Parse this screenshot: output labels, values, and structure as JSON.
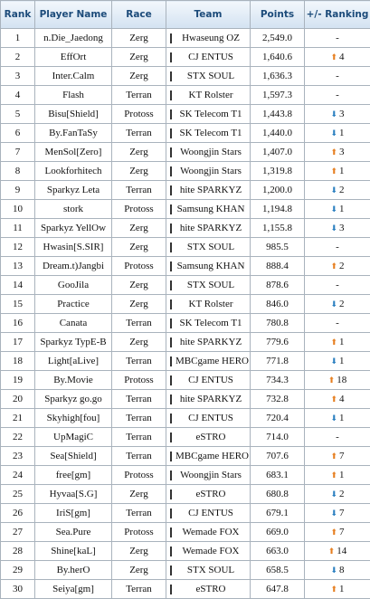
{
  "table": {
    "header": [
      "Rank",
      "Player Name",
      "Race",
      "Team",
      "Points",
      "+/- Ranking"
    ],
    "rows": [
      [
        "1",
        "n.Die_Jaedong",
        "Zerg",
        "Hwaseung OZ",
        "2,549.0",
        "-"
      ],
      [
        "2",
        "EffOrt",
        "Zerg",
        "CJ ENTUS",
        "1,640.6",
        {
          "trend": "up",
          "text": "4"
        }
      ],
      [
        "3",
        "Inter.Calm",
        "Zerg",
        "STX SOUL",
        "1,636.3",
        "-"
      ],
      [
        "4",
        "Flash",
        "Terran",
        "KT Rolster",
        "1,597.3",
        "-"
      ],
      [
        "5",
        "Bisu[Shield]",
        "Protoss",
        "SK Telecom T1",
        "1,443.8",
        {
          "trend": "down",
          "text": "3"
        }
      ],
      [
        "6",
        "By.FanTaSy",
        "Terran",
        "SK Telecom T1",
        "1,440.0",
        {
          "trend": "down",
          "text": "1"
        }
      ],
      [
        "7",
        "MenSol[Zero]",
        "Zerg",
        "Woongjin Stars",
        "1,407.0",
        {
          "trend": "up",
          "text": "3"
        }
      ],
      [
        "8",
        "Lookforhitech",
        "Zerg",
        "Woongjin Stars",
        "1,319.8",
        {
          "trend": "up",
          "text": "1"
        }
      ],
      [
        "9",
        "Sparkyz Leta",
        "Terran",
        "hite SPARKYZ",
        "1,200.0",
        {
          "trend": "down",
          "text": "2"
        }
      ],
      [
        "10",
        "stork",
        "Protoss",
        "Samsung KHAN",
        "1,194.8",
        {
          "trend": "down",
          "text": "1"
        }
      ],
      [
        "11",
        "Sparkyz YellOw",
        "Zerg",
        "hite SPARKYZ",
        "1,155.8",
        {
          "trend": "down",
          "text": "3"
        }
      ],
      [
        "12",
        "Hwasin[S.SIR]",
        "Zerg",
        "STX SOUL",
        "985.5",
        "-"
      ],
      [
        "13",
        "Dream.t)Jangbi",
        "Protoss",
        "Samsung KHAN",
        "888.4",
        {
          "trend": "up",
          "text": "2"
        }
      ],
      [
        "14",
        "GooJila",
        "Zerg",
        "STX SOUL",
        "878.6",
        "-"
      ],
      [
        "15",
        "Practice",
        "Zerg",
        "KT Rolster",
        "846.0",
        {
          "trend": "down",
          "text": "2"
        }
      ],
      [
        "16",
        "Canata",
        "Terran",
        "SK Telecom T1",
        "780.8",
        "-"
      ],
      [
        "17",
        "Sparkyz TypE-B",
        "Zerg",
        "hite SPARKYZ",
        "779.6",
        {
          "trend": "up",
          "text": "1"
        }
      ],
      [
        "18",
        "Light[aLive]",
        "Terran",
        "MBCgame HERO",
        "771.8",
        {
          "trend": "down",
          "text": "1"
        }
      ],
      [
        "19",
        "By.Movie",
        "Protoss",
        "CJ ENTUS",
        "734.3",
        {
          "trend": "up",
          "text": "18"
        }
      ],
      [
        "20",
        "Sparkyz go.go",
        "Terran",
        "hite SPARKYZ",
        "732.8",
        {
          "trend": "up",
          "text": "4"
        }
      ],
      [
        "21",
        "Skyhigh[fou]",
        "Terran",
        "CJ ENTUS",
        "720.4",
        {
          "trend": "down",
          "text": "1"
        }
      ],
      [
        "22",
        "UpMagiC",
        "Terran",
        "eSTRO",
        "714.0",
        "-"
      ],
      [
        "23",
        "Sea[Shield]",
        "Terran",
        "MBCgame HERO",
        "707.6",
        {
          "trend": "up",
          "text": "7"
        }
      ],
      [
        "24",
        "free[gm]",
        "Protoss",
        "Woongjin Stars",
        "683.1",
        {
          "trend": "up",
          "text": "1"
        }
      ],
      [
        "25",
        "Hyvaa[S.G]",
        "Zerg",
        "eSTRO",
        "680.8",
        {
          "trend": "down",
          "text": "2"
        }
      ],
      [
        "26",
        "IriS[gm]",
        "Terran",
        "CJ ENTUS",
        "679.1",
        {
          "trend": "down",
          "text": "7"
        }
      ],
      [
        "27",
        "Sea.Pure",
        "Protoss",
        "Wemade FOX",
        "669.0",
        {
          "trend": "up",
          "text": "7"
        }
      ],
      [
        "28",
        "Shine[kaL]",
        "Zerg",
        "Wemade FOX",
        "663.0",
        {
          "trend": "up",
          "text": "14"
        }
      ],
      [
        "29",
        "By.herO",
        "Zerg",
        "STX SOUL",
        "658.5",
        {
          "trend": "down",
          "text": "8"
        }
      ],
      [
        "30",
        "Seiya[gm]",
        "Terran",
        "eSTRO",
        "647.8",
        {
          "trend": "up",
          "text": "1"
        }
      ]
    ]
  }
}
